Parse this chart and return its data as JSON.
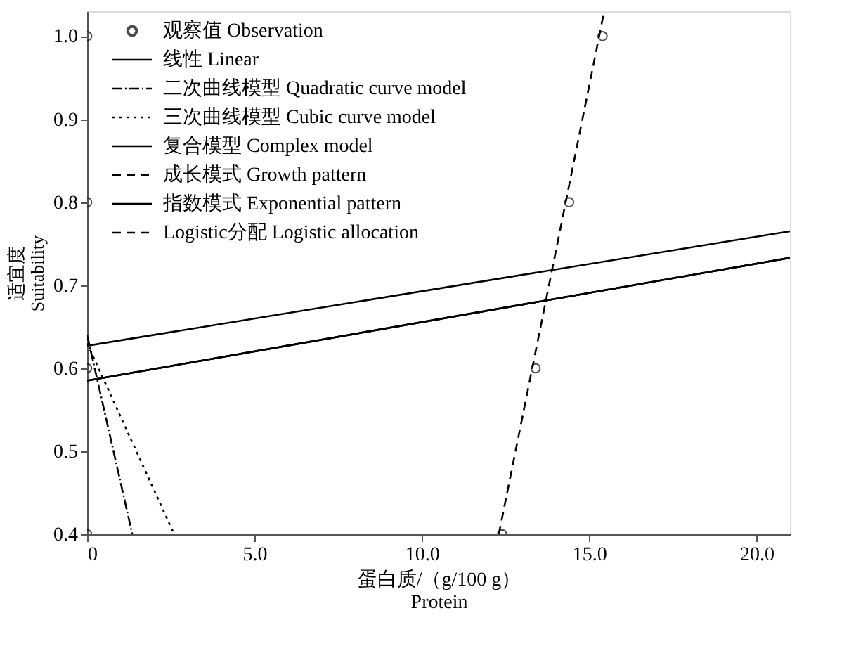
{
  "chart_data": {
    "type": "line",
    "xlabel": "蛋白质/（g/100 g）\nProtein",
    "ylabel": "适宜度\nSuitability",
    "xlim": [
      0,
      21
    ],
    "ylim": [
      0.4,
      1.03
    ],
    "xticks": [
      0,
      {
        "value": 5,
        "label": "5.0"
      },
      {
        "value": 10,
        "label": "10.0"
      },
      {
        "value": 15,
        "label": "15.0"
      },
      {
        "value": 20,
        "label": "20.0"
      }
    ],
    "yticks": [
      {
        "value": 0.4,
        "label": "0.4"
      },
      {
        "value": 0.5,
        "label": "0.5"
      },
      {
        "value": 0.6,
        "label": "0.6"
      },
      {
        "value": 0.7,
        "label": "0.7"
      },
      {
        "value": 0.8,
        "label": "0.8"
      },
      {
        "value": 0.9,
        "label": "0.9"
      },
      {
        "value": 1,
        "label": "1.0"
      }
    ],
    "grid": false,
    "legend": "top left",
    "series": [
      {
        "name": "观察值 Observation",
        "type": "scatter",
        "marker": "circle",
        "color": "#000000",
        "x": [
          0,
          0,
          0,
          0,
          12.4,
          13.4,
          14.4,
          15.4
        ],
        "values": [
          1.0,
          0.8,
          0.6,
          0.4,
          0.4,
          0.6,
          0.8,
          1.0
        ]
      },
      {
        "name": "线性 Linear",
        "line_style": "solid",
        "color": "#000000",
        "x": [
          0,
          21
        ],
        "values": [
          0.627,
          0.765
        ]
      },
      {
        "name": "二次曲线模型 Quadratic curve model",
        "line_style": "dashdot",
        "color": "#000000",
        "x": [
          0,
          1.35
        ],
        "values": [
          0.64,
          0.4
        ]
      },
      {
        "name": "三次曲线模型 Cubic curve model",
        "line_style": "dotted",
        "color": "#000000",
        "x": [
          0,
          2.6
        ],
        "values": [
          0.63,
          0.4
        ]
      },
      {
        "name": "复合模型 Complex model",
        "line_style": "solid",
        "color": "#000000",
        "x": [
          0,
          21
        ],
        "values": [
          0.585,
          0.733
        ]
      },
      {
        "name": "成长模式 Growth pattern",
        "line_style": "dashed",
        "color": "#000000",
        "x": [
          0,
          21
        ],
        "values": [
          0.585,
          0.733
        ]
      },
      {
        "name": "指数模式 Exponential pattern",
        "line_style": "solid",
        "color": "#000000",
        "x": [
          0,
          21
        ],
        "values": [
          0.585,
          0.733
        ]
      },
      {
        "name": "Logistic分配 Logistic allocation",
        "line_style": "dashed",
        "color": "#000000",
        "x": [
          12.3,
          15.45
        ],
        "values": [
          0.4,
          1.03
        ]
      }
    ]
  }
}
